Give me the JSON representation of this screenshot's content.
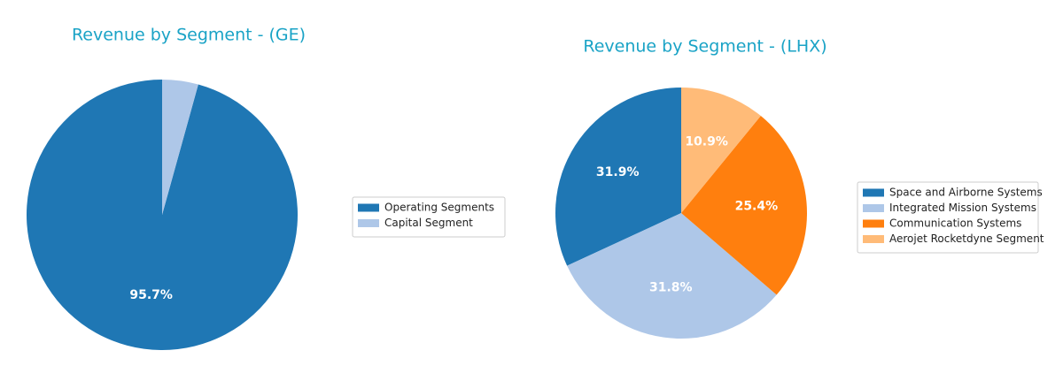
{
  "chart_data": [
    {
      "type": "pie",
      "title": "Revenue by Segment - (GE)",
      "categories": [
        "Operating Segments",
        "Capital Segment"
      ],
      "values": [
        95.7,
        4.3
      ],
      "value_labels": [
        "95.7%",
        null
      ],
      "colors": [
        "#1f77b4",
        "#aec7e8"
      ],
      "legend": "right"
    },
    {
      "type": "pie",
      "title": "Revenue by Segment - (LHX)",
      "categories": [
        "Space and Airborne Systems",
        "Integrated Mission Systems",
        "Communication Systems",
        "Aerojet Rocketdyne Segment"
      ],
      "values": [
        31.9,
        31.8,
        25.4,
        10.9
      ],
      "value_labels": [
        "31.9%",
        "31.8%",
        "25.4%",
        "10.9%"
      ],
      "colors": [
        "#1f77b4",
        "#aec7e8",
        "#ff7f0e",
        "#ffbb78"
      ],
      "legend": "right"
    }
  ]
}
